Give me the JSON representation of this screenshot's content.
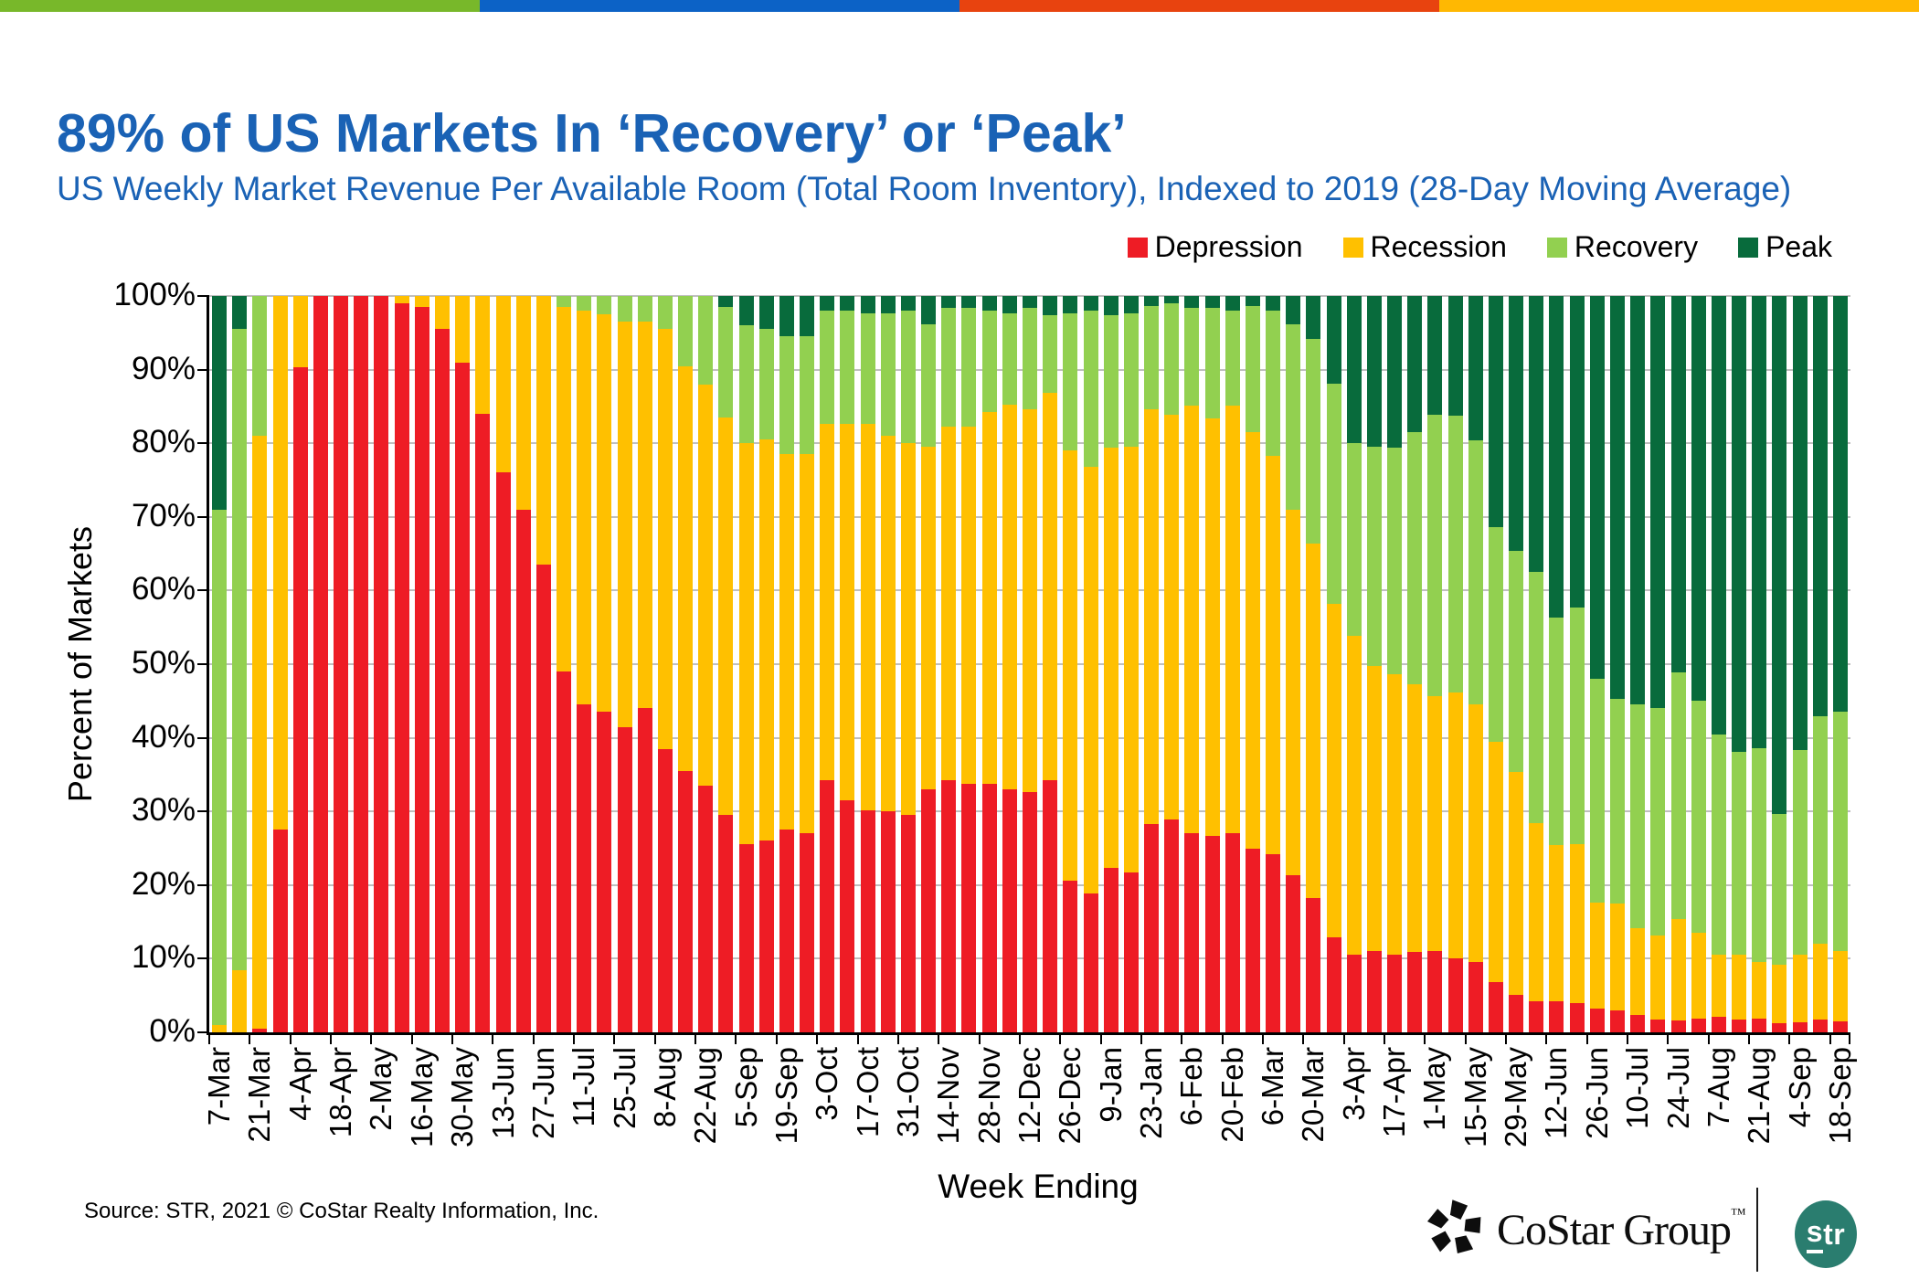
{
  "top_stripe": {
    "colors": [
      "#78B82A",
      "#0C62C6",
      "#E8430F",
      "#FFB802"
    ]
  },
  "header": {
    "title": "89% of US Markets In ‘Recovery’ or ‘Peak’",
    "subtitle": "US Weekly Market Revenue Per Available Room (Total Room Inventory), Indexed to 2019 (28-Day Moving Average)",
    "title_color": "#1A62B5"
  },
  "footer": {
    "source": "Source: STR, 2021 © CoStar Realty Information, Inc.",
    "costar_label": "CoStar Group",
    "costar_tm": "™",
    "str_label_first": "s",
    "str_label_rest": "tr",
    "str_badge_color": "#2A7D6F"
  },
  "chart_data": {
    "type": "bar",
    "stacked": true,
    "title": "89% of US Markets In ‘Recovery’ or ‘Peak’",
    "subtitle": "US Weekly Market Revenue Per Available Room (Total Room Inventory), Indexed to 2019 (28-Day Moving Average)",
    "xlabel": "Week Ending",
    "ylabel": "Percent of Markets",
    "ylim": [
      0,
      100
    ],
    "grid": "horizontal",
    "grid_color": "#BFBFBF",
    "legend_position": "top-right",
    "yticks": [
      "0%",
      "10%",
      "20%",
      "30%",
      "40%",
      "50%",
      "60%",
      "70%",
      "80%",
      "90%",
      "100%"
    ],
    "legend": {
      "entries": [
        {
          "name": "Depression",
          "color": "#EE1C25"
        },
        {
          "name": "Recession",
          "color": "#FFC000"
        },
        {
          "name": "Recovery",
          "color": "#92D050"
        },
        {
          "name": "Peak",
          "color": "#086B3C"
        }
      ]
    },
    "series_order": [
      "Depression",
      "Recession",
      "Recovery",
      "Peak"
    ],
    "tick_every": 2,
    "tick_labels": [
      "7-Mar",
      "21-Mar",
      "4-Apr",
      "18-Apr",
      "2-May",
      "16-May",
      "30-May",
      "13-Jun",
      "27-Jun",
      "11-Jul",
      "25-Jul",
      "8-Aug",
      "22-Aug",
      "5-Sep",
      "19-Sep",
      "3-Oct",
      "17-Oct",
      "31-Oct",
      "14-Nov",
      "28-Nov",
      "12-Dec",
      "26-Dec",
      "9-Jan",
      "23-Jan",
      "6-Feb",
      "20-Feb",
      "6-Mar",
      "20-Mar",
      "3-Apr",
      "17-Apr",
      "1-May",
      "15-May",
      "29-May",
      "12-Jun",
      "26-Jun",
      "10-Jul",
      "24-Jul",
      "7-Aug",
      "21-Aug",
      "4-Sep",
      "18-Sep"
    ],
    "bars": [
      [
        0,
        1,
        70,
        29
      ],
      [
        0,
        8.5,
        87,
        4.5
      ],
      [
        0.5,
        80.5,
        19,
        0
      ],
      [
        27.5,
        72.5,
        0,
        0
      ],
      [
        90.3,
        9.7,
        0,
        0
      ],
      [
        100,
        0,
        0,
        0
      ],
      [
        100,
        0,
        0,
        0
      ],
      [
        100,
        0,
        0,
        0
      ],
      [
        100,
        0,
        0,
        0
      ],
      [
        99,
        1,
        0,
        0
      ],
      [
        98.5,
        1.5,
        0,
        0
      ],
      [
        95.5,
        4.5,
        0,
        0
      ],
      [
        91,
        9,
        0,
        0
      ],
      [
        84,
        16,
        0,
        0
      ],
      [
        76,
        24,
        0,
        0
      ],
      [
        71,
        29,
        0,
        0
      ],
      [
        63.5,
        36.5,
        0,
        0
      ],
      [
        49,
        49.5,
        1.5,
        0
      ],
      [
        44.5,
        53.5,
        2,
        0
      ],
      [
        43.5,
        54,
        2.5,
        0
      ],
      [
        41.5,
        55,
        3.5,
        0
      ],
      [
        44,
        52.5,
        3.5,
        0
      ],
      [
        38.5,
        57,
        4.5,
        0
      ],
      [
        35.5,
        55,
        9.5,
        0
      ],
      [
        33.5,
        54.5,
        12,
        0
      ],
      [
        29.5,
        54,
        15,
        1.5
      ],
      [
        25.5,
        54.5,
        16,
        4
      ],
      [
        26,
        54.5,
        15,
        4.5
      ],
      [
        27.5,
        51,
        16,
        5.5
      ],
      [
        27,
        51.5,
        16,
        5.5
      ],
      [
        34.3,
        48.3,
        15.4,
        2
      ],
      [
        31.5,
        51.1,
        15.4,
        2
      ],
      [
        30.2,
        52.4,
        15.1,
        2.3
      ],
      [
        30,
        51,
        16.7,
        2.3
      ],
      [
        29.5,
        50.5,
        18,
        2
      ],
      [
        33,
        46.5,
        16.6,
        3.9
      ],
      [
        34.3,
        48,
        16.1,
        1.6
      ],
      [
        33.8,
        48.5,
        16.1,
        1.6
      ],
      [
        33.8,
        50.4,
        13.8,
        2
      ],
      [
        33,
        52.2,
        12.5,
        2.3
      ],
      [
        32.6,
        52,
        13.8,
        1.6
      ],
      [
        34.3,
        52.5,
        10.6,
        2.6
      ],
      [
        20.6,
        58.4,
        18.7,
        2.3
      ],
      [
        18.8,
        58,
        21.2,
        2
      ],
      [
        22.3,
        57.1,
        18,
        2.6
      ],
      [
        21.7,
        57.8,
        18.2,
        2.3
      ],
      [
        28.3,
        56.3,
        14.1,
        1.3
      ],
      [
        28.9,
        55,
        15.1,
        1
      ],
      [
        27.1,
        58,
        13.3,
        1.6
      ],
      [
        26.7,
        56.7,
        15,
        1.6
      ],
      [
        27.1,
        58,
        12.9,
        2
      ],
      [
        24.9,
        56.6,
        17.2,
        1.3
      ],
      [
        24.2,
        54.1,
        19.7,
        2
      ],
      [
        21.4,
        49.6,
        25.1,
        3.9
      ],
      [
        18.2,
        48.2,
        27.8,
        5.8
      ],
      [
        12.9,
        45.3,
        29.9,
        11.9
      ],
      [
        10.6,
        43.2,
        26.2,
        20
      ],
      [
        11.1,
        38.7,
        29.7,
        20.5
      ],
      [
        10.6,
        38,
        30.8,
        20.6
      ],
      [
        10.9,
        36.4,
        34.2,
        18.5
      ],
      [
        11.1,
        34.6,
        38.2,
        16.1
      ],
      [
        10,
        36.1,
        37.6,
        16.3
      ],
      [
        9.6,
        34.9,
        35.9,
        19.6
      ],
      [
        6.8,
        32.7,
        29.1,
        31.4
      ],
      [
        5.1,
        30.3,
        30,
        34.6
      ],
      [
        4.2,
        24.2,
        34.1,
        37.5
      ],
      [
        4.2,
        21.2,
        30.9,
        43.7
      ],
      [
        4,
        21.5,
        32.2,
        42.3
      ],
      [
        3.2,
        14.4,
        30.4,
        52
      ],
      [
        3,
        14.5,
        27.8,
        54.7
      ],
      [
        2.3,
        11.8,
        30.4,
        55.5
      ],
      [
        1.7,
        11.5,
        30.8,
        56
      ],
      [
        1.6,
        13.8,
        33.5,
        51.1
      ],
      [
        1.9,
        11.6,
        31.5,
        55
      ],
      [
        2.1,
        8.5,
        29.9,
        59.5
      ],
      [
        1.7,
        8.9,
        27.5,
        61.9
      ],
      [
        1.9,
        7.7,
        29,
        61.4
      ],
      [
        1.3,
        7.9,
        20.4,
        70.4
      ],
      [
        1.4,
        9.2,
        27.7,
        61.7
      ],
      [
        1.7,
        10.3,
        30.9,
        57.1
      ],
      [
        1.5,
        9.5,
        32.5,
        56.5
      ]
    ]
  }
}
